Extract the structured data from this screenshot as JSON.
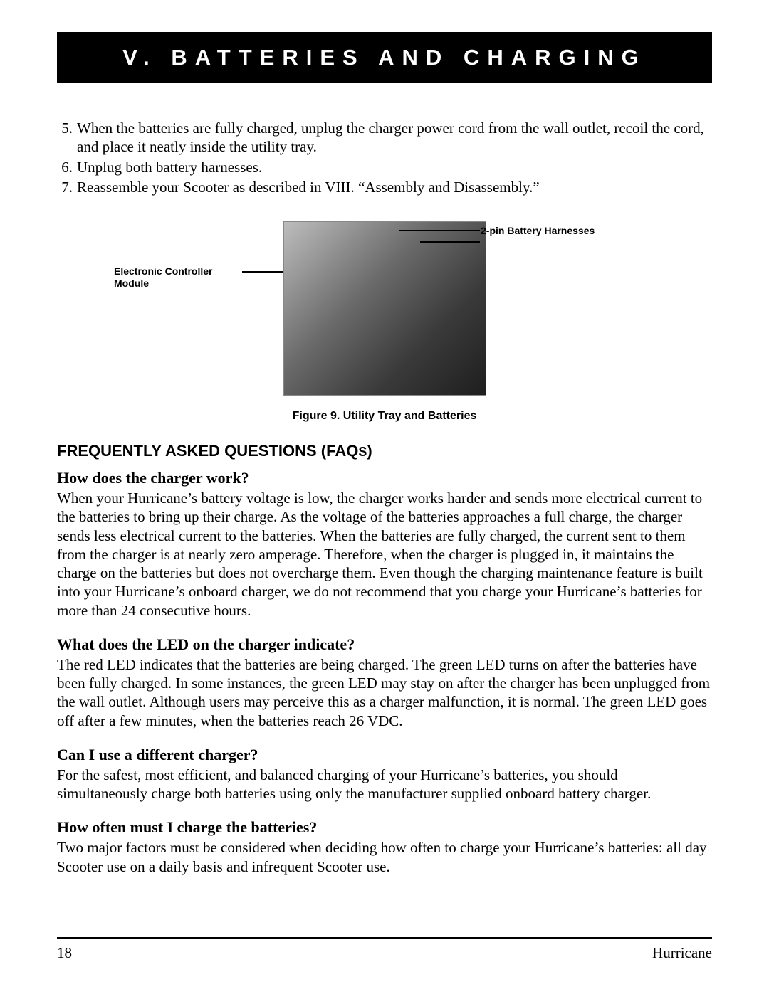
{
  "header": {
    "title": "V. BATTERIES AND CHARGING"
  },
  "steps": [
    {
      "num": "5.",
      "text": "When the batteries are fully charged, unplug the charger power cord from the wall outlet, recoil the cord, and place it neatly inside the utility tray."
    },
    {
      "num": "6.",
      "text": "Unplug both battery harnesses."
    },
    {
      "num": "7.",
      "text": "Reassemble your Scooter as described in VIII. “Assembly and Disassembly.”"
    }
  ],
  "figure": {
    "callout_left": "Electronic Controller Module",
    "callout_right": "2-pin Battery Harnesses",
    "caption": "Figure 9. Utility Tray and Batteries"
  },
  "faq_heading_main": "FREQUENTLY ASKED QUESTIONS (FAQ",
  "faq_heading_suffix": "S",
  "faq_heading_close": ")",
  "faqs": [
    {
      "q": "How does the charger work?",
      "a": "When your Hurricane’s battery voltage is low, the charger works harder and sends more electrical current to the batteries to bring up their charge. As the voltage of the batteries approaches a full charge, the charger  sends less electrical current to the batteries. When the batteries are fully charged, the current sent to them from the charger is at nearly zero amperage. Therefore, when the charger is plugged in, it maintains the charge on the batteries but does not overcharge them. Even though the charging maintenance feature is built into your Hurricane’s onboard charger, we do not recommend that you charge your Hurricane’s batteries for more than 24 consecutive hours."
    },
    {
      "q": "What does the LED on the charger indicate?",
      "a": "The red LED indicates  that the batteries are being charged. The green LED turns on after the batteries have been fully charged. In some instances, the green LED may stay on after the charger has been unplugged from the wall outlet. Although users may perceive this as a charger malfunction, it is  normal. The green LED goes off after a few minutes, when the batteries reach 26 VDC."
    },
    {
      "q": "Can I use a different charger?",
      "a": "For the safest, most efficient, and balanced charging of your Hurricane’s batteries, you should simultaneously charge both batteries using only the manufacturer supplied onboard battery charger."
    },
    {
      "q": "How often must I charge the batteries?",
      "a": "Two major factors must be considered when deciding how often to charge your Hurricane’s batteries: all day Scooter use on a daily basis and infrequent Scooter use."
    }
  ],
  "footer": {
    "page_number": "18",
    "product": "Hurricane"
  }
}
